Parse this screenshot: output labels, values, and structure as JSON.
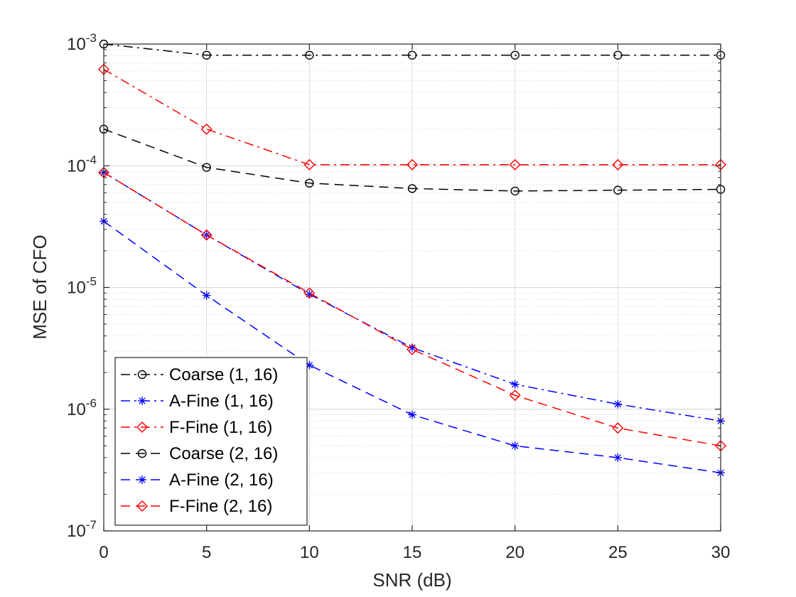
{
  "chart_data": {
    "type": "line",
    "title": "",
    "xlabel": "SNR (dB)",
    "ylabel": "MSE of CFO",
    "x": [
      0,
      5,
      10,
      15,
      20,
      25,
      30
    ],
    "xlim": [
      0,
      30
    ],
    "ylim": [
      1e-07,
      0.001
    ],
    "yscale": "log",
    "grid": true,
    "x_ticks": [
      0,
      5,
      10,
      15,
      20,
      25,
      30
    ],
    "x_tick_labels": [
      "0",
      "5",
      "10",
      "15",
      "20",
      "25",
      "30"
    ],
    "y_ticks": [
      {
        "value": 1e-07,
        "base": "10",
        "exp": "-7"
      },
      {
        "value": 1e-06,
        "base": "10",
        "exp": "-6"
      },
      {
        "value": 1e-05,
        "base": "10",
        "exp": "-5"
      },
      {
        "value": 0.0001,
        "base": "10",
        "exp": "-4"
      },
      {
        "value": 0.001,
        "base": "10",
        "exp": "-3"
      }
    ],
    "legend_position": "bottom-left",
    "series": [
      {
        "name": "Coarse (1, 16)",
        "color": "#000000",
        "dash": "dashdot",
        "marker": "circle",
        "values": [
          0.001,
          0.00081,
          0.00081,
          0.00081,
          0.00081,
          0.00081,
          0.00081
        ]
      },
      {
        "name": "A-Fine (1, 16)",
        "color": "#0000ff",
        "dash": "dashdot",
        "marker": "asterisk",
        "values": [
          8.8e-05,
          2.7e-05,
          8.8e-06,
          3.2e-06,
          1.6e-06,
          1.1e-06,
          8e-07
        ]
      },
      {
        "name": "F-Fine (1, 16)",
        "color": "#ff0000",
        "dash": "dashdot",
        "marker": "diamond",
        "values": [
          0.00062,
          0.0002,
          0.000102,
          0.000102,
          0.000102,
          0.000102,
          0.000102
        ]
      },
      {
        "name": "Coarse (2, 16)",
        "color": "#000000",
        "dash": "dashed",
        "marker": "circle",
        "values": [
          0.0002,
          9.7e-05,
          7.2e-05,
          6.5e-05,
          6.2e-05,
          6.3e-05,
          6.4e-05
        ]
      },
      {
        "name": "A-Fine (2, 16)",
        "color": "#0000ff",
        "dash": "dashed",
        "marker": "asterisk",
        "values": [
          3.5e-05,
          8.6e-06,
          2.3e-06,
          9e-07,
          5e-07,
          4e-07,
          3e-07
        ]
      },
      {
        "name": "F-Fine (2, 16)",
        "color": "#ff0000",
        "dash": "dashed",
        "marker": "diamond",
        "values": [
          8.8e-05,
          2.7e-05,
          9e-06,
          3.1e-06,
          1.3e-06,
          7e-07,
          5e-07
        ]
      }
    ]
  }
}
